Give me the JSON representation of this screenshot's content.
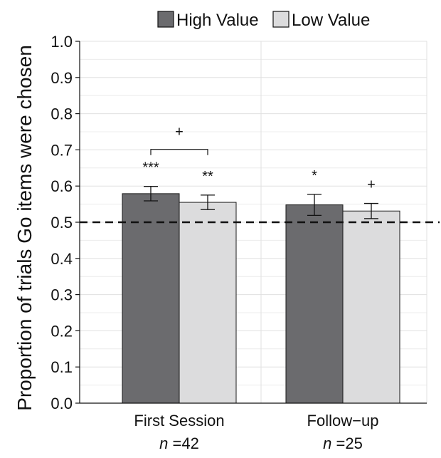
{
  "chart_data": {
    "type": "bar",
    "title": "",
    "xlabel": "",
    "ylabel": "Proportion of trials Go items were chosen",
    "ylim": [
      0,
      1.0
    ],
    "yticks": [
      "0.0",
      "0.1",
      "0.2",
      "0.3",
      "0.4",
      "0.5",
      "0.6",
      "0.7",
      "0.8",
      "0.9",
      "1.0"
    ],
    "grid": true,
    "legend_position": "top",
    "categories": [
      "First Session",
      "Follow−up"
    ],
    "sample_sizes": [
      {
        "var": "n",
        "eq": " =",
        "value": "42"
      },
      {
        "var": "n",
        "eq": " =",
        "value": "25"
      }
    ],
    "series": [
      {
        "name": "High Value",
        "color": "#6b6b6e",
        "values": [
          0.579,
          0.548
        ],
        "error": [
          0.02,
          0.029
        ],
        "significance": [
          "***",
          "*"
        ]
      },
      {
        "name": "Low Value",
        "color": "#dcdcdd",
        "values": [
          0.555,
          0.531
        ],
        "error": [
          0.02,
          0.021
        ],
        "significance": [
          "**",
          "+"
        ]
      }
    ],
    "reference_line": {
      "y": 0.5,
      "style": "dashed"
    },
    "comparison_brackets": [
      {
        "category_index": 0,
        "from_series": 0,
        "to_series": 1,
        "label": "+"
      }
    ]
  }
}
